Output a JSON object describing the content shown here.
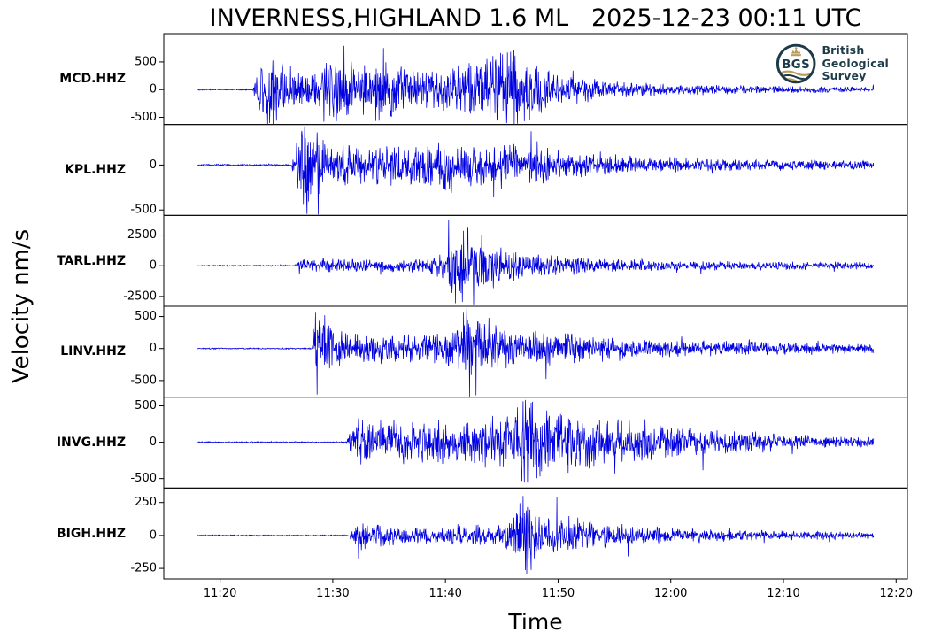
{
  "title": "INVERNESS,HIGHLAND 1.6 ML   2025-12-23 00:11 UTC",
  "logo": {
    "abbr": "BGS",
    "lines": [
      "British",
      "Geological",
      "Survey"
    ],
    "navy": "#1d3a49",
    "gold": "#b89c5e"
  },
  "chart_data": {
    "type": "line",
    "title": "INVERNESS,HIGHLAND 1.6 ML   2025-12-23 00:11 UTC",
    "xlabel": "Time",
    "ylabel": "Velocity nm/s",
    "x_ticks": [
      "11:20",
      "11:30",
      "11:40",
      "11:50",
      "12:00",
      "12:10",
      "12:20"
    ],
    "x_tick_minutes": [
      20,
      30,
      40,
      50,
      60,
      70,
      80
    ],
    "xlim_minutes": [
      15,
      81
    ],
    "time_start_minute": 18,
    "time_end_minute": 78,
    "grid": false,
    "legend": "none",
    "trace_color": "#0000e0",
    "axis_color": "#000000",
    "panels": [
      {
        "station": "MCD.HHZ",
        "yticks": [
          500,
          0,
          -500
        ],
        "ylim": [
          -630,
          1010
        ],
        "seed": 101,
        "quiet_until_minute": 22.9,
        "envelope": [
          [
            18,
            10
          ],
          [
            22.9,
            10
          ],
          [
            23.2,
            330
          ],
          [
            24,
            470
          ],
          [
            24.7,
            870
          ],
          [
            25.3,
            430
          ],
          [
            26.5,
            360
          ],
          [
            28,
            270
          ],
          [
            29.5,
            430
          ],
          [
            31,
            620
          ],
          [
            32,
            360
          ],
          [
            33.5,
            380
          ],
          [
            34.4,
            660
          ],
          [
            35.5,
            380
          ],
          [
            37,
            320
          ],
          [
            38.5,
            300
          ],
          [
            40,
            330
          ],
          [
            41.5,
            360
          ],
          [
            43,
            420
          ],
          [
            44.5,
            560
          ],
          [
            45.8,
            600
          ],
          [
            47,
            470
          ],
          [
            48.5,
            340
          ],
          [
            50,
            250
          ],
          [
            52,
            190
          ],
          [
            54,
            150
          ],
          [
            56,
            120
          ],
          [
            58,
            100
          ],
          [
            61,
            80
          ],
          [
            64,
            65
          ],
          [
            68,
            55
          ],
          [
            72,
            48
          ],
          [
            78,
            40
          ]
        ],
        "spikes": [
          [
            24.8,
            930
          ],
          [
            25.0,
            -560
          ],
          [
            29.2,
            -580
          ],
          [
            31.0,
            790
          ],
          [
            34.1,
            -560
          ],
          [
            34.5,
            750
          ],
          [
            45.5,
            670
          ],
          [
            46.1,
            -630
          ]
        ]
      },
      {
        "station": "KPL.HHZ",
        "yticks": [
          0,
          -500
        ],
        "ylim": [
          -560,
          450
        ],
        "seed": 202,
        "quiet_until_minute": 26.3,
        "envelope": [
          [
            18,
            8
          ],
          [
            26.3,
            8
          ],
          [
            26.6,
            200
          ],
          [
            27.3,
            420
          ],
          [
            28,
            310
          ],
          [
            29,
            270
          ],
          [
            30.5,
            220
          ],
          [
            32.5,
            180
          ],
          [
            34.5,
            170
          ],
          [
            36.5,
            200
          ],
          [
            38.5,
            230
          ],
          [
            40.5,
            250
          ],
          [
            42,
            240
          ],
          [
            44,
            210
          ],
          [
            46,
            180
          ],
          [
            48,
            155
          ],
          [
            50,
            135
          ],
          [
            53,
            105
          ],
          [
            56,
            85
          ],
          [
            59,
            72
          ],
          [
            62,
            62
          ],
          [
            66,
            54
          ],
          [
            70,
            48
          ],
          [
            74,
            44
          ],
          [
            78,
            40
          ]
        ],
        "spikes": [
          [
            27.5,
            430
          ],
          [
            27.7,
            -545
          ],
          [
            28.7,
            -550
          ],
          [
            44.3,
            -350
          ],
          [
            47.6,
            375
          ]
        ]
      },
      {
        "station": "TARL.HHZ",
        "yticks": [
          2500,
          0,
          -2500
        ],
        "ylim": [
          -3300,
          4100
        ],
        "seed": 303,
        "quiet_until_minute": 26.6,
        "envelope": [
          [
            18,
            40
          ],
          [
            26.6,
            40
          ],
          [
            27,
            480
          ],
          [
            27.8,
            600
          ],
          [
            29,
            500
          ],
          [
            31,
            440
          ],
          [
            33,
            420
          ],
          [
            35,
            400
          ],
          [
            37,
            420
          ],
          [
            38.5,
            520
          ],
          [
            39.8,
            900
          ],
          [
            40.6,
            2000
          ],
          [
            41.6,
            2500
          ],
          [
            42.4,
            2550
          ],
          [
            43.2,
            1900
          ],
          [
            44.2,
            1450
          ],
          [
            45.5,
            1100
          ],
          [
            47,
            900
          ],
          [
            48.5,
            760
          ],
          [
            50.5,
            620
          ],
          [
            53,
            500
          ],
          [
            56,
            420
          ],
          [
            59,
            360
          ],
          [
            62,
            320
          ],
          [
            66,
            290
          ],
          [
            70,
            270
          ],
          [
            74,
            258
          ],
          [
            78,
            248
          ]
        ],
        "spikes": [
          [
            40.3,
            3700
          ],
          [
            40.9,
            -3050
          ],
          [
            41.6,
            2850
          ],
          [
            42.0,
            3100
          ],
          [
            42.5,
            -3150
          ],
          [
            43.2,
            2500
          ]
        ]
      },
      {
        "station": "LINV.HHZ",
        "yticks": [
          500,
          0,
          -500
        ],
        "ylim": [
          -760,
          660
        ],
        "seed": 404,
        "quiet_until_minute": 28.1,
        "envelope": [
          [
            18,
            8
          ],
          [
            28.1,
            8
          ],
          [
            28.4,
            430
          ],
          [
            29.2,
            390
          ],
          [
            30.2,
            270
          ],
          [
            31.5,
            215
          ],
          [
            33.5,
            195
          ],
          [
            35.5,
            188
          ],
          [
            37.5,
            195
          ],
          [
            39.5,
            210
          ],
          [
            40.8,
            280
          ],
          [
            41.8,
            430
          ],
          [
            42.8,
            390
          ],
          [
            44.2,
            310
          ],
          [
            46,
            265
          ],
          [
            48,
            235
          ],
          [
            50,
            212
          ],
          [
            52,
            190
          ],
          [
            54,
            165
          ],
          [
            56,
            145
          ],
          [
            58,
            128
          ],
          [
            60,
            112
          ],
          [
            63,
            98
          ],
          [
            66,
            90
          ],
          [
            70,
            82
          ],
          [
            74,
            76
          ],
          [
            78,
            70
          ]
        ],
        "spikes": [
          [
            28.45,
            560
          ],
          [
            28.6,
            -720
          ],
          [
            29.3,
            520
          ],
          [
            41.6,
            560
          ],
          [
            41.9,
            630
          ],
          [
            42.15,
            -850
          ],
          [
            42.7,
            -730
          ]
        ]
      },
      {
        "station": "INVG.HHZ",
        "yticks": [
          500,
          0,
          -500
        ],
        "ylim": [
          -630,
          620
        ],
        "seed": 505,
        "quiet_until_minute": 31.2,
        "envelope": [
          [
            18,
            8
          ],
          [
            31.2,
            8
          ],
          [
            31.6,
            170
          ],
          [
            32.5,
            250
          ],
          [
            33.8,
            205
          ],
          [
            35.2,
            215
          ],
          [
            36.6,
            265
          ],
          [
            38,
            235
          ],
          [
            40,
            225
          ],
          [
            42,
            245
          ],
          [
            44,
            270
          ],
          [
            45.5,
            340
          ],
          [
            46.6,
            470
          ],
          [
            47.4,
            510
          ],
          [
            48.2,
            430
          ],
          [
            49.2,
            370
          ],
          [
            50.5,
            325
          ],
          [
            52,
            290
          ],
          [
            54,
            258
          ],
          [
            56,
            235
          ],
          [
            58,
            215
          ],
          [
            60,
            195
          ],
          [
            62.5,
            165
          ],
          [
            65,
            138
          ],
          [
            68,
            108
          ],
          [
            71,
            85
          ],
          [
            74,
            68
          ],
          [
            78,
            50
          ]
        ],
        "spikes": [
          [
            32.3,
            330
          ],
          [
            32.5,
            -305
          ],
          [
            46.4,
            480
          ],
          [
            46.9,
            565
          ],
          [
            47.3,
            -555
          ],
          [
            48.1,
            -495
          ]
        ]
      },
      {
        "station": "BIGH.HHZ",
        "yticks": [
          250,
          0,
          -250
        ],
        "ylim": [
          -330,
          360
        ],
        "seed": 606,
        "quiet_until_minute": 31.4,
        "envelope": [
          [
            18,
            4
          ],
          [
            31.4,
            4
          ],
          [
            31.8,
            65
          ],
          [
            32.4,
            95
          ],
          [
            33.2,
            78
          ],
          [
            34.5,
            66
          ],
          [
            36.5,
            58
          ],
          [
            38.5,
            55
          ],
          [
            40.5,
            56
          ],
          [
            42.5,
            60
          ],
          [
            44.3,
            68
          ],
          [
            45.6,
            95
          ],
          [
            46.4,
            170
          ],
          [
            47,
            235
          ],
          [
            47.7,
            175
          ],
          [
            48.5,
            125
          ],
          [
            49.3,
            103
          ],
          [
            50.2,
            115
          ],
          [
            51,
            135
          ],
          [
            52,
            112
          ],
          [
            53.5,
            88
          ],
          [
            55,
            72
          ],
          [
            57,
            61
          ],
          [
            59,
            52
          ],
          [
            61,
            46
          ],
          [
            64,
            39
          ],
          [
            67,
            33
          ],
          [
            70,
            29
          ],
          [
            74,
            25
          ],
          [
            78,
            21
          ]
        ],
        "spikes": [
          [
            46.6,
            245
          ],
          [
            46.9,
            300
          ],
          [
            47.2,
            -295
          ],
          [
            47.6,
            -262
          ],
          [
            49.9,
            288
          ]
        ]
      }
    ]
  }
}
